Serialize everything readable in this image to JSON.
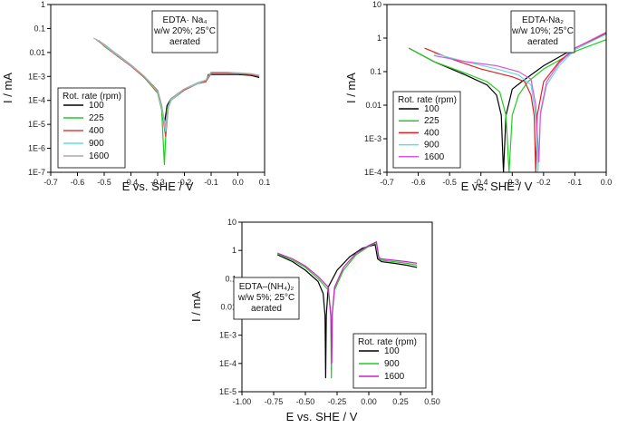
{
  "chart_data": [
    {
      "type": "line",
      "note_lines": [
        "EDTA· Na₄",
        "w/w 20%; 25°C",
        "aerated"
      ],
      "xlabel": "E vs. SHE / V",
      "ylabel": "I / mA",
      "xlim": [
        -0.7,
        0.1
      ],
      "ylim": [
        1e-07,
        1
      ],
      "yscale": "log",
      "xticks": [
        "-0.7",
        "-0.6",
        "-0.5",
        "-0.4",
        "-0.3",
        "-0.2",
        "-0.1",
        "0.0",
        "0.1"
      ],
      "yticks": [
        "1E-7",
        "1E-6",
        "1E-5",
        "1E-4",
        "1E-3",
        "0.01",
        "0.1",
        "1"
      ],
      "legend_title": "Rot. rate (rpm)",
      "legend_position": "center-left",
      "series": [
        {
          "name": "100",
          "color": "#000000",
          "x": [
            -0.53,
            -0.5,
            -0.45,
            -0.4,
            -0.35,
            -0.3,
            -0.285,
            -0.275,
            -0.265,
            -0.25,
            -0.2,
            -0.15,
            -0.12,
            -0.11,
            -0.05,
            0.0,
            0.05,
            0.08
          ],
          "y": [
            0.035,
            0.02,
            0.008,
            0.003,
            0.001,
            0.00025,
            6e-05,
            1e-05,
            6e-05,
            0.00012,
            0.0003,
            0.0005,
            0.0006,
            0.0012,
            0.0012,
            0.0012,
            0.0011,
            0.0009
          ]
        },
        {
          "name": "225",
          "color": "#22cc22",
          "x": [
            -0.52,
            -0.5,
            -0.45,
            -0.4,
            -0.35,
            -0.3,
            -0.285,
            -0.275,
            -0.265,
            -0.25,
            -0.2,
            -0.15,
            -0.12,
            -0.1,
            -0.05,
            0.0,
            0.05,
            0.08
          ],
          "y": [
            0.03,
            0.018,
            0.007,
            0.0028,
            0.0009,
            0.0002,
            4e-05,
            2e-07,
            4e-05,
            0.0001,
            0.00028,
            0.0005,
            0.0006,
            0.0013,
            0.0013,
            0.0013,
            0.0012,
            0.001
          ]
        },
        {
          "name": "400",
          "color": "#e04040",
          "x": [
            -0.52,
            -0.5,
            -0.45,
            -0.4,
            -0.35,
            -0.3,
            -0.285,
            -0.27,
            -0.26,
            -0.25,
            -0.2,
            -0.15,
            -0.12,
            -0.1,
            -0.05,
            0.0,
            0.05,
            0.08
          ],
          "y": [
            0.03,
            0.019,
            0.007,
            0.0027,
            0.0009,
            0.00022,
            5e-05,
            3e-06,
            5e-05,
            0.0001,
            0.00027,
            0.0005,
            0.0006,
            0.0014,
            0.0014,
            0.0013,
            0.0012,
            0.001
          ]
        },
        {
          "name": "900",
          "color": "#66dddd",
          "x": [
            -0.52,
            -0.5,
            -0.45,
            -0.4,
            -0.35,
            -0.3,
            -0.285,
            -0.27,
            -0.26,
            -0.25,
            -0.2,
            -0.15,
            -0.12,
            -0.1,
            -0.05,
            0.0,
            0.05,
            0.08
          ],
          "y": [
            0.032,
            0.02,
            0.0075,
            0.0029,
            0.001,
            0.00023,
            5e-05,
            5e-06,
            5e-05,
            0.0001,
            0.0003,
            0.0005,
            0.0007,
            0.0015,
            0.0015,
            0.0014,
            0.0013,
            0.0011
          ]
        },
        {
          "name": "1600",
          "color": "#aaaaaa",
          "x": [
            -0.54,
            -0.5,
            -0.45,
            -0.4,
            -0.35,
            -0.3,
            -0.285,
            -0.27,
            -0.26,
            -0.25,
            -0.2,
            -0.15,
            -0.12,
            -0.1,
            -0.05,
            0.0,
            0.05,
            0.08
          ],
          "y": [
            0.04,
            0.022,
            0.008,
            0.003,
            0.001,
            0.00024,
            6e-05,
            8e-06,
            6e-05,
            0.00012,
            0.0003,
            0.00055,
            0.0007,
            0.0015,
            0.0015,
            0.0014,
            0.0013,
            0.0011
          ]
        }
      ]
    },
    {
      "type": "line",
      "note_lines": [
        "EDTA-Na₂",
        "w/w 10%; 25°C",
        "aerated"
      ],
      "xlabel": "E vs. SHE / V",
      "ylabel": "I / mA",
      "xlim": [
        -0.7,
        0.0
      ],
      "ylim": [
        0.0001,
        10
      ],
      "yscale": "log",
      "xticks": [
        "-0.7",
        "-0.6",
        "-0.5",
        "-0.4",
        "-0.3",
        "-0.2",
        "-0.1",
        "0.0"
      ],
      "yticks": [
        "1E-4",
        "1E-3",
        "0.01",
        "0.1",
        "1",
        "10"
      ],
      "legend_title": "Rot. rate (rpm)",
      "legend_position": "bottom-left",
      "series": [
        {
          "name": "100",
          "color": "#000000",
          "x": [
            -0.63,
            -0.55,
            -0.45,
            -0.38,
            -0.35,
            -0.335,
            -0.328,
            -0.32,
            -0.3,
            -0.27,
            -0.2,
            -0.1,
            0.0
          ],
          "y": [
            0.5,
            0.2,
            0.08,
            0.04,
            0.02,
            0.005,
            0.0001,
            0.005,
            0.03,
            0.05,
            0.15,
            0.5,
            1.4
          ]
        },
        {
          "name": "225",
          "color": "#22cc22",
          "x": [
            -0.63,
            -0.55,
            -0.45,
            -0.38,
            -0.34,
            -0.32,
            -0.31,
            -0.3,
            -0.28,
            -0.25,
            -0.2,
            -0.1,
            0.0
          ],
          "y": [
            0.5,
            0.2,
            0.09,
            0.05,
            0.025,
            0.005,
            0.0001,
            0.005,
            0.02,
            0.05,
            0.12,
            0.4,
            0.9
          ]
        },
        {
          "name": "400",
          "color": "#e02020",
          "x": [
            -0.58,
            -0.5,
            -0.4,
            -0.3,
            -0.26,
            -0.24,
            -0.23,
            -0.225,
            -0.22,
            -0.2,
            -0.15,
            -0.1,
            0.0
          ],
          "y": [
            0.5,
            0.25,
            0.12,
            0.07,
            0.05,
            0.02,
            0.005,
            0.0001,
            0.005,
            0.05,
            0.2,
            0.5,
            1.4
          ]
        },
        {
          "name": "900",
          "color": "#66dddd",
          "x": [
            -0.55,
            -0.45,
            -0.35,
            -0.28,
            -0.24,
            -0.225,
            -0.218,
            -0.21,
            -0.19,
            -0.15,
            -0.1,
            0.0
          ],
          "y": [
            0.35,
            0.2,
            0.12,
            0.08,
            0.04,
            0.005,
            0.0001,
            0.005,
            0.04,
            0.15,
            0.45,
            1.3
          ]
        },
        {
          "name": "1600",
          "color": "#dd55dd",
          "x": [
            -0.55,
            -0.45,
            -0.35,
            -0.28,
            -0.24,
            -0.225,
            -0.215,
            -0.21,
            -0.19,
            -0.15,
            -0.1,
            0.0
          ],
          "y": [
            0.3,
            0.2,
            0.15,
            0.1,
            0.06,
            0.01,
            0.0002,
            0.006,
            0.05,
            0.18,
            0.5,
            1.5
          ]
        }
      ]
    },
    {
      "type": "line",
      "note_lines": [
        "EDTA–(NH₄)₂",
        "w/w 5%; 25°C",
        "aerated"
      ],
      "xlabel": "E vs. SHE / V",
      "ylabel": "I / mA",
      "xlim": [
        -1.0,
        0.5
      ],
      "ylim": [
        1e-05,
        10
      ],
      "yscale": "log",
      "xticks": [
        "-1.00",
        "-0.75",
        "-0.50",
        "-0.25",
        "0.00",
        "0.25",
        "0.50"
      ],
      "yticks": [
        "1E-5",
        "1E-4",
        "1E-3",
        "0.01",
        "0.1",
        "1",
        "10"
      ],
      "legend_title": "Rot. rate (rpm)",
      "legend_position": "bottom-right",
      "series": [
        {
          "name": "100",
          "color": "#000000",
          "x": [
            -0.72,
            -0.6,
            -0.5,
            -0.4,
            -0.36,
            -0.345,
            -0.34,
            -0.335,
            -0.32,
            -0.25,
            -0.15,
            -0.05,
            0.05,
            0.07,
            0.1,
            0.2,
            0.3,
            0.38
          ],
          "y": [
            0.7,
            0.4,
            0.2,
            0.08,
            0.03,
            0.005,
            3e-05,
            0.005,
            0.05,
            0.2,
            0.6,
            1.2,
            1.6,
            0.5,
            0.4,
            0.35,
            0.3,
            0.25
          ]
        },
        {
          "name": "900",
          "color": "#22cc22",
          "x": [
            -0.72,
            -0.6,
            -0.5,
            -0.4,
            -0.32,
            -0.3,
            -0.295,
            -0.29,
            -0.27,
            -0.2,
            -0.1,
            0.0,
            0.06,
            0.08,
            0.1,
            0.2,
            0.3,
            0.38
          ],
          "y": [
            0.75,
            0.45,
            0.25,
            0.1,
            0.04,
            0.005,
            3e-05,
            0.005,
            0.04,
            0.2,
            0.7,
            1.4,
            1.9,
            0.5,
            0.45,
            0.4,
            0.35,
            0.3
          ]
        },
        {
          "name": "1600",
          "color": "#cc22cc",
          "x": [
            -0.72,
            -0.6,
            -0.5,
            -0.4,
            -0.32,
            -0.3,
            -0.292,
            -0.287,
            -0.27,
            -0.2,
            -0.1,
            0.0,
            0.06,
            0.08,
            0.1,
            0.2,
            0.3,
            0.38
          ],
          "y": [
            0.8,
            0.5,
            0.28,
            0.12,
            0.05,
            0.006,
            0.0001,
            0.006,
            0.05,
            0.25,
            0.8,
            1.5,
            2.0,
            0.55,
            0.5,
            0.45,
            0.4,
            0.35
          ]
        }
      ]
    }
  ]
}
